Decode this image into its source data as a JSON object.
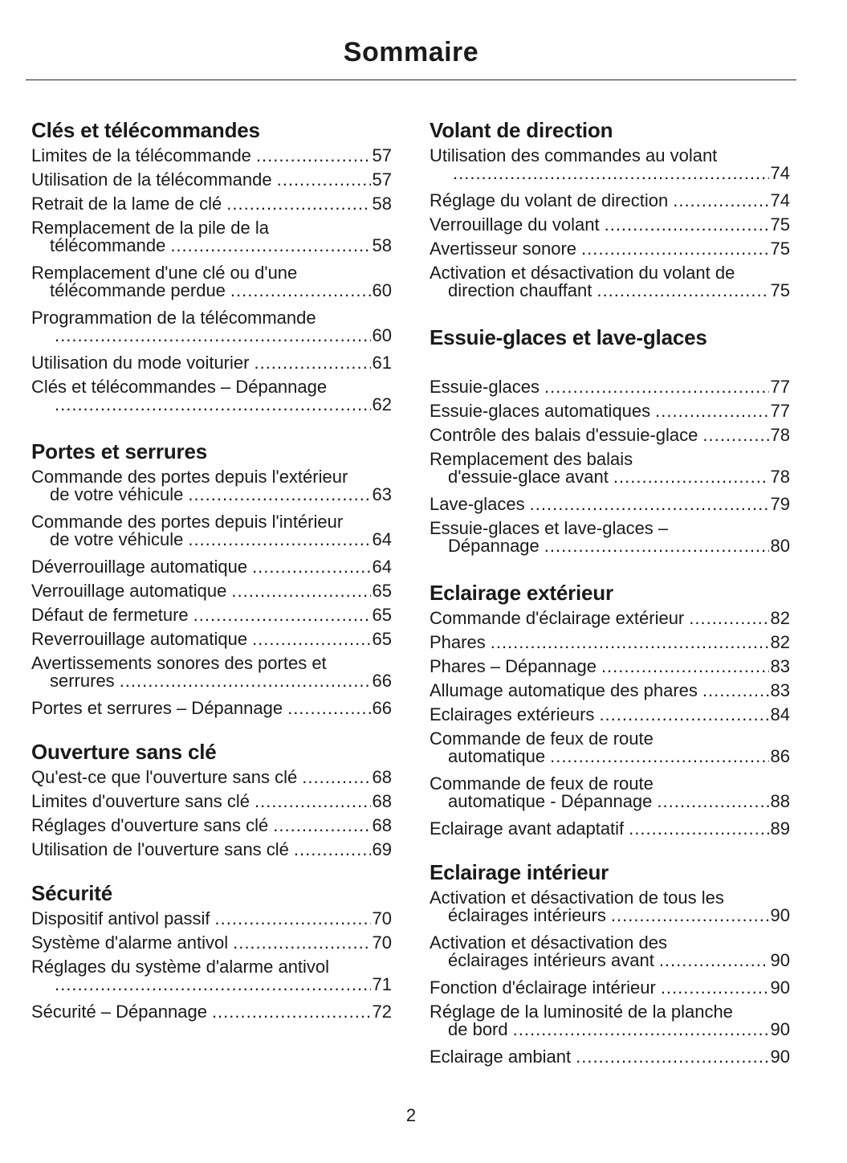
{
  "title": "Sommaire",
  "page_number": "2",
  "columns": [
    {
      "sections": [
        {
          "heading": "Clés et télécommandes",
          "entries": [
            {
              "text": "Limites de la télécommande",
              "page": "57"
            },
            {
              "text": "Utilisation de la télécommande",
              "page": "57"
            },
            {
              "text": "Retrait de la lame de clé",
              "page": "58"
            },
            {
              "text": "Remplacement de la pile de la",
              "cont": "télécommande",
              "page": "58"
            },
            {
              "text": "Remplacement d'une clé ou d'une",
              "cont": "télécommande perdue",
              "page": "60"
            },
            {
              "text": "Programmation de la télécommande",
              "cont": "",
              "page": "60"
            },
            {
              "text": "Utilisation du mode voiturier",
              "page": "61"
            },
            {
              "text": "Clés et télécommandes – Dépannage",
              "cont": "",
              "page": "62"
            }
          ]
        },
        {
          "heading": "Portes et serrures",
          "entries": [
            {
              "text": "Commande des portes depuis l'extérieur",
              "cont": "de votre véhicule",
              "page": "63"
            },
            {
              "text": "Commande des portes depuis l'intérieur",
              "cont": "de votre véhicule",
              "page": "64"
            },
            {
              "text": "Déverrouillage automatique",
              "page": "64"
            },
            {
              "text": "Verrouillage automatique",
              "page": "65"
            },
            {
              "text": "Défaut de fermeture",
              "page": "65"
            },
            {
              "text": "Reverrouillage automatique",
              "page": "65"
            },
            {
              "text": "Avertissements sonores des portes et",
              "cont": "serrures",
              "page": "66"
            },
            {
              "text": "Portes et serrures – Dépannage",
              "page": "66"
            }
          ]
        },
        {
          "heading": "Ouverture sans clé",
          "entries": [
            {
              "text": "Qu'est-ce que l'ouverture sans clé",
              "page": "68"
            },
            {
              "text": "Limites d'ouverture sans clé",
              "page": "68"
            },
            {
              "text": "Réglages d'ouverture sans clé",
              "page": "68"
            },
            {
              "text": "Utilisation de l'ouverture sans clé",
              "page": "69"
            }
          ]
        },
        {
          "heading": "Sécurité",
          "entries": [
            {
              "text": "Dispositif antivol passif",
              "page": "70"
            },
            {
              "text": "Système d'alarme antivol",
              "page": "70"
            },
            {
              "text": "Réglages du système d'alarme antivol",
              "cont": "",
              "page": "71"
            },
            {
              "text": "Sécurité – Dépannage",
              "page": "72"
            }
          ]
        }
      ]
    },
    {
      "sections": [
        {
          "heading": "Volant de direction",
          "entries": [
            {
              "text": "Utilisation des commandes au volant",
              "cont": "",
              "page": "74"
            },
            {
              "text": "Réglage du volant de direction",
              "page": "74"
            },
            {
              "text": "Verrouillage du volant",
              "page": "75"
            },
            {
              "text": "Avertisseur sonore",
              "page": "75"
            },
            {
              "text": "Activation et désactivation du volant de",
              "cont": "direction chauffant",
              "page": "75"
            }
          ]
        },
        {
          "heading": "Essuie-glaces et lave-glaces",
          "gap": true,
          "entries": [
            {
              "text": "Essuie-glaces",
              "page": "77"
            },
            {
              "text": "Essuie-glaces automatiques",
              "page": "77"
            },
            {
              "text": "Contrôle des balais d'essuie-glace",
              "page": "78"
            },
            {
              "text": "Remplacement des balais",
              "cont": "d'essuie-glace avant",
              "page": "78"
            },
            {
              "text": "Lave-glaces",
              "page": "79"
            },
            {
              "text": "Essuie-glaces et lave-glaces –",
              "cont": "Dépannage",
              "page": "80"
            }
          ]
        },
        {
          "heading": "Eclairage extérieur",
          "entries": [
            {
              "text": "Commande d'éclairage extérieur",
              "page": "82"
            },
            {
              "text": "Phares",
              "page": "82"
            },
            {
              "text": "Phares – Dépannage",
              "page": "83"
            },
            {
              "text": "Allumage automatique des phares",
              "page": "83"
            },
            {
              "text": "Eclairages extérieurs",
              "page": "84"
            },
            {
              "text": "Commande de feux de route",
              "cont": "automatique",
              "page": "86"
            },
            {
              "text": "Commande de feux de route",
              "cont": "automatique - Dépannage",
              "page": "88"
            },
            {
              "text": "Eclairage avant adaptatif",
              "page": "89"
            }
          ]
        },
        {
          "heading": "Eclairage intérieur",
          "entries": [
            {
              "text": "Activation et désactivation de tous les",
              "cont": "éclairages intérieurs",
              "page": "90"
            },
            {
              "text": "Activation et désactivation des",
              "cont": "éclairages intérieurs avant",
              "page": "90"
            },
            {
              "text": "Fonction d'éclairage intérieur",
              "page": "90"
            },
            {
              "text": "Réglage de la luminosité de la planche",
              "cont": "de bord",
              "page": "90"
            },
            {
              "text": "Eclairage ambiant",
              "page": "90"
            }
          ]
        }
      ]
    }
  ]
}
